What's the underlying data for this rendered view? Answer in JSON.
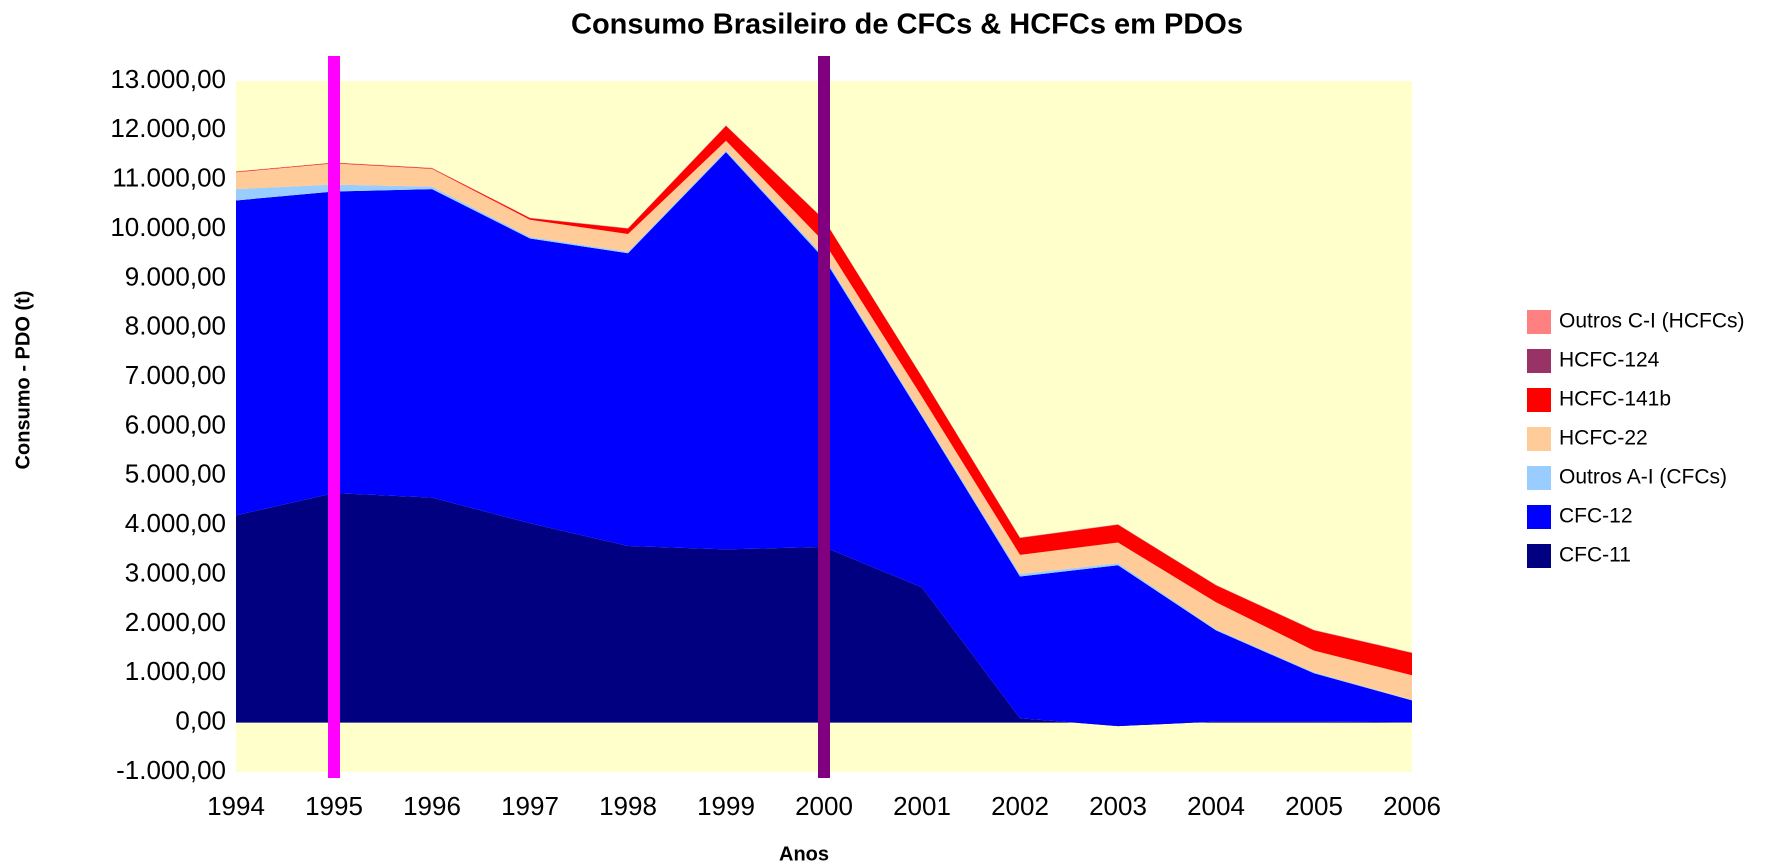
{
  "chart_data": {
    "type": "stacked-area",
    "title": "Consumo Brasileiro de CFCs & HCFCs em PDOs",
    "x_label": "Anos",
    "y_label": "Consumo - PDO (t)",
    "x": [
      1994,
      1995,
      1996,
      1997,
      1998,
      1999,
      2000,
      2001,
      2002,
      2003,
      2004,
      2005,
      2006
    ],
    "xlim": [
      1994,
      2006
    ],
    "xticks": [
      1994,
      1995,
      1996,
      1997,
      1998,
      1999,
      2000,
      2001,
      2002,
      2003,
      2004,
      2005,
      2006
    ],
    "ylim": [
      -1000,
      13000
    ],
    "yticks": [
      {
        "value": -1000,
        "label": "-1.000,00"
      },
      {
        "value": 0,
        "label": "0,00"
      },
      {
        "value": 1000,
        "label": "1.000,00"
      },
      {
        "value": 2000,
        "label": "2.000,00"
      },
      {
        "value": 3000,
        "label": "3.000,00"
      },
      {
        "value": 4000,
        "label": "4.000,00"
      },
      {
        "value": 5000,
        "label": "5.000,00"
      },
      {
        "value": 6000,
        "label": "6.000,00"
      },
      {
        "value": 7000,
        "label": "7.000,00"
      },
      {
        "value": 8000,
        "label": "8.000,00"
      },
      {
        "value": 9000,
        "label": "9.000,00"
      },
      {
        "value": 10000,
        "label": "10.000,00"
      },
      {
        "value": 11000,
        "label": "11.000,00"
      },
      {
        "value": 12000,
        "label": "12.000,00"
      },
      {
        "value": 13000,
        "label": "13.000,00"
      }
    ],
    "negative_tick_color": "#ff0000",
    "plot_background": "#ffffcc",
    "legend_position": "right",
    "series": [
      {
        "name": "CFC-11",
        "color": "#000080",
        "values": [
          4200,
          4650,
          4560,
          4040,
          3580,
          3510,
          3560,
          2740,
          90,
          -70,
          20,
          20,
          10
        ]
      },
      {
        "name": "CFC-12",
        "color": "#0000ff",
        "values": [
          6380,
          6110,
          6250,
          5770,
          5930,
          8050,
          5840,
          3460,
          2870,
          3260,
          1850,
          980,
          440
        ]
      },
      {
        "name": "Outros A-I (CFCs)",
        "color": "#99ccff",
        "values": [
          230,
          140,
          50,
          30,
          30,
          30,
          50,
          30,
          50,
          40,
          20,
          20,
          10
        ]
      },
      {
        "name": "HCFC-22",
        "color": "#ffcc99",
        "values": [
          340,
          430,
          360,
          350,
          360,
          200,
          290,
          370,
          390,
          420,
          550,
          440,
          500
        ]
      },
      {
        "name": "HCFC-141b",
        "color": "#ff0000",
        "values": [
          10,
          10,
          10,
          30,
          110,
          300,
          450,
          400,
          340,
          360,
          340,
          410,
          450
        ]
      },
      {
        "name": "HCFC-124",
        "color": "#993366",
        "values": [
          5,
          5,
          5,
          5,
          5,
          5,
          5,
          5,
          5,
          5,
          5,
          5,
          5
        ]
      },
      {
        "name": "Outros C-I (HCFCs)",
        "color": "#ff8080",
        "values": [
          5,
          5,
          5,
          5,
          5,
          5,
          5,
          5,
          5,
          5,
          5,
          5,
          5
        ]
      }
    ],
    "vertical_lines": [
      {
        "x": 1995,
        "color": "#ff00ff"
      },
      {
        "x": 2000,
        "color": "#800080"
      }
    ]
  }
}
